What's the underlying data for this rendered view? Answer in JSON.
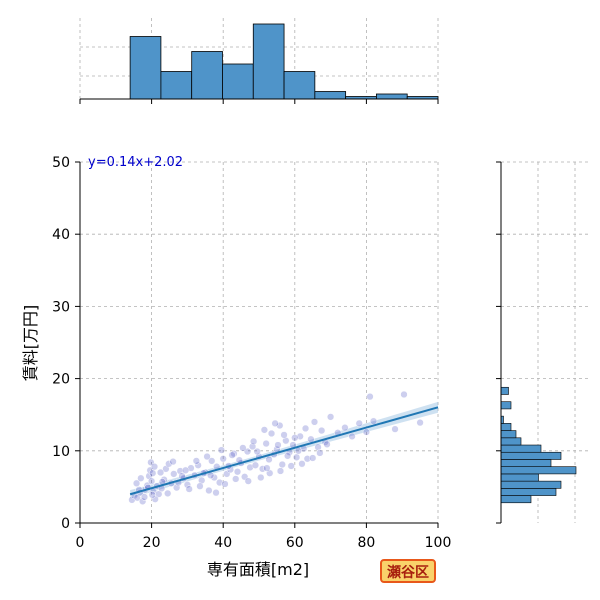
{
  "chart_data": {
    "type": "scatter",
    "xlabel": "専有面積[m2]",
    "ylabel": "賃料[万円]",
    "xlim": [
      0,
      100
    ],
    "ylim": [
      0,
      50
    ],
    "xticks": [
      0,
      20,
      40,
      60,
      80,
      100
    ],
    "yticks": [
      0,
      10,
      20,
      30,
      40,
      50
    ],
    "grid": true,
    "regression": {
      "label": "y=0.14x+2.02",
      "slope": 0.14,
      "intercept": 2.02,
      "x_range": [
        14,
        100
      ]
    },
    "points": [
      [
        14.5,
        3.2
      ],
      [
        15.2,
        3.8
      ],
      [
        16.0,
        3.5
      ],
      [
        16.8,
        4.2
      ],
      [
        17.5,
        3.0
      ],
      [
        18.2,
        4.6
      ],
      [
        18.8,
        5.2
      ],
      [
        19.3,
        6.5
      ],
      [
        19.6,
        7.3
      ],
      [
        19.8,
        8.4
      ],
      [
        20.0,
        5.8
      ],
      [
        20.3,
        6.9
      ],
      [
        20.5,
        4.4
      ],
      [
        20.8,
        7.8
      ],
      [
        21.5,
        5.1
      ],
      [
        22.0,
        4.0
      ],
      [
        22.8,
        4.8
      ],
      [
        23.5,
        6.0
      ],
      [
        24.0,
        7.5
      ],
      [
        24.8,
        8.2
      ],
      [
        25.5,
        5.5
      ],
      [
        26.2,
        6.8
      ],
      [
        27.0,
        4.9
      ],
      [
        28.0,
        7.2
      ],
      [
        29.0,
        6.2
      ],
      [
        30.0,
        5.3
      ],
      [
        31.0,
        7.6
      ],
      [
        32.0,
        6.6
      ],
      [
        33.0,
        8.0
      ],
      [
        34.0,
        5.9
      ],
      [
        35.0,
        7.0
      ],
      [
        36.0,
        4.5
      ],
      [
        36.8,
        8.6
      ],
      [
        37.5,
        6.3
      ],
      [
        38.2,
        7.8
      ],
      [
        39.0,
        5.6
      ],
      [
        40.0,
        8.9
      ],
      [
        41.0,
        6.8
      ],
      [
        42.0,
        7.4
      ],
      [
        43.0,
        9.6
      ],
      [
        44.0,
        7.1
      ],
      [
        45.0,
        8.3
      ],
      [
        46.0,
        6.4
      ],
      [
        46.8,
        9.9
      ],
      [
        47.5,
        7.7
      ],
      [
        48.2,
        10.6
      ],
      [
        49.0,
        8.0
      ],
      [
        50.0,
        9.2
      ],
      [
        51.0,
        7.5
      ],
      [
        52.0,
        11.0
      ],
      [
        52.8,
        8.8
      ],
      [
        53.5,
        12.4
      ],
      [
        54.2,
        9.5
      ],
      [
        55.0,
        10.2
      ],
      [
        55.8,
        13.5
      ],
      [
        56.5,
        8.1
      ],
      [
        57.5,
        11.4
      ],
      [
        58.5,
        9.8
      ],
      [
        59.5,
        10.8
      ],
      [
        60.5,
        9.1
      ],
      [
        61.5,
        12.0
      ],
      [
        62.5,
        10.3
      ],
      [
        63.5,
        8.9
      ],
      [
        64.5,
        11.6
      ],
      [
        65.5,
        14.0
      ],
      [
        66.5,
        10.5
      ],
      [
        67.5,
        12.8
      ],
      [
        68.5,
        11.2
      ],
      [
        70.0,
        14.7
      ],
      [
        72.0,
        12.5
      ],
      [
        74.0,
        13.2
      ],
      [
        76.0,
        12.0
      ],
      [
        78.0,
        13.8
      ],
      [
        80.0,
        12.6
      ],
      [
        81.0,
        17.5
      ],
      [
        82.0,
        14.1
      ],
      [
        88.0,
        13.0
      ],
      [
        90.5,
        17.8
      ],
      [
        95.0,
        13.9
      ],
      [
        18.0,
        3.6
      ],
      [
        21.0,
        3.3
      ],
      [
        24.5,
        4.1
      ],
      [
        27.5,
        5.6
      ],
      [
        30.5,
        4.7
      ],
      [
        33.5,
        5.1
      ],
      [
        38.0,
        4.2
      ],
      [
        40.5,
        5.4
      ],
      [
        43.5,
        6.1
      ],
      [
        47.0,
        5.8
      ],
      [
        50.5,
        6.3
      ],
      [
        53.0,
        6.9
      ],
      [
        56.0,
        7.2
      ],
      [
        59.0,
        7.9
      ],
      [
        62.0,
        8.2
      ],
      [
        65.0,
        9.0
      ],
      [
        15.8,
        5.5
      ],
      [
        17.0,
        6.2
      ],
      [
        19.0,
        4.9
      ],
      [
        22.5,
        7.0
      ],
      [
        26.0,
        8.5
      ],
      [
        29.5,
        7.3
      ],
      [
        32.5,
        8.6
      ],
      [
        35.5,
        9.2
      ],
      [
        39.5,
        10.1
      ],
      [
        42.5,
        9.4
      ],
      [
        45.5,
        10.4
      ],
      [
        48.5,
        11.3
      ],
      [
        51.5,
        12.9
      ],
      [
        54.5,
        13.8
      ],
      [
        57.0,
        12.2
      ],
      [
        60.0,
        11.8
      ],
      [
        63.0,
        13.1
      ],
      [
        67.0,
        9.7
      ],
      [
        69.0,
        10.9
      ],
      [
        20.2,
        3.9
      ],
      [
        36.5,
        6.6
      ],
      [
        44.5,
        8.7
      ],
      [
        52.2,
        7.6
      ],
      [
        58.0,
        9.3
      ],
      [
        41.5,
        7.9
      ],
      [
        34.5,
        6.9
      ],
      [
        28.5,
        6.5
      ],
      [
        23.0,
        5.7
      ],
      [
        16.5,
        4.6
      ],
      [
        49.5,
        9.9
      ],
      [
        55.3,
        10.8
      ],
      [
        61.0,
        10.0
      ]
    ],
    "top_histogram": {
      "bin_edges": [
        14,
        22.6,
        31.2,
        39.8,
        48.4,
        57,
        65.6,
        74.2,
        82.8,
        91.4,
        100
      ],
      "counts": [
        25,
        11,
        19,
        14,
        30,
        11,
        3,
        1,
        2,
        1
      ]
    },
    "right_histogram": {
      "bin_edges": [
        2.8,
        3.8,
        4.8,
        5.8,
        6.8,
        7.8,
        8.8,
        9.8,
        10.8,
        11.8,
        12.8,
        13.8,
        14.8,
        15.8,
        16.8,
        17.8,
        18.8
      ],
      "counts": [
        12,
        22,
        24,
        15,
        30,
        20,
        24,
        16,
        8,
        6,
        4,
        1,
        0,
        4,
        0,
        3
      ]
    },
    "colors": {
      "scatter": "#5b5fc7",
      "regression_line": "#1f77b4",
      "ci_band": "#a6c8e6",
      "histogram_fill": "#4f94c9",
      "equation_text": "#0000cc"
    }
  },
  "badge": {
    "label": "瀬谷区"
  }
}
